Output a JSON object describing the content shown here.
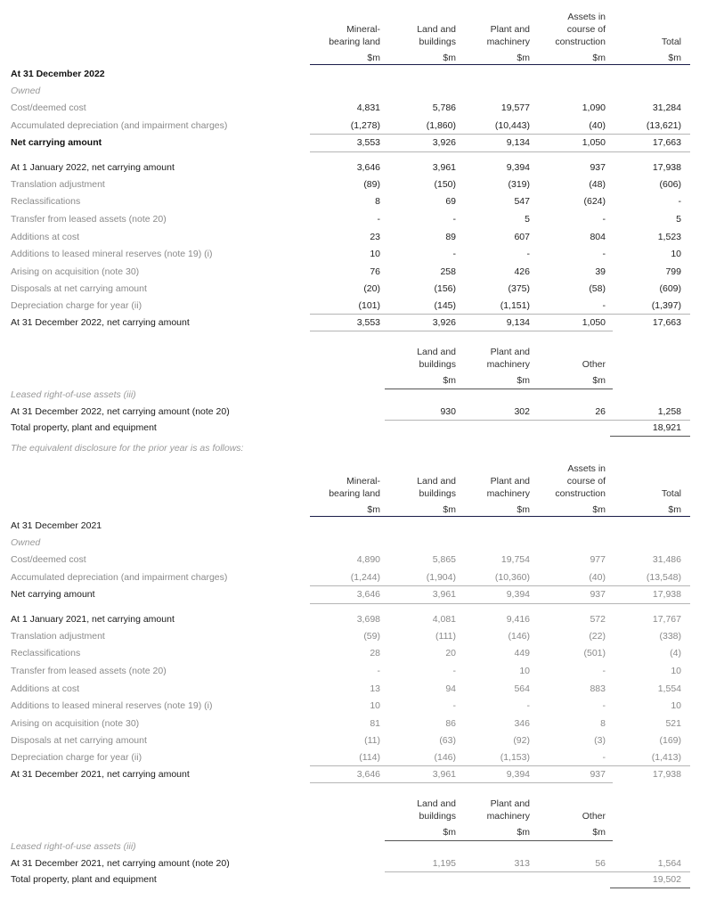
{
  "sections": [
    {
      "year": "2022",
      "numbers_muted": false,
      "header": {
        "columns": [
          [
            "Mineral-",
            "bearing land",
            "$m"
          ],
          [
            "Land and",
            "buildings",
            "$m"
          ],
          [
            "Plant and",
            "machinery",
            "$m"
          ],
          [
            "Assets in",
            "course of",
            "construction",
            "$m"
          ],
          [
            "Total",
            "$m"
          ]
        ]
      },
      "title": "At 31 December 2022",
      "title_bold": true,
      "owned_label": "Owned",
      "cost_rows": [
        {
          "label": "Cost/deemed cost",
          "values": [
            "4,831",
            "5,786",
            "19,577",
            "1,090",
            "31,284"
          ]
        },
        {
          "label": "Accumulated depreciation (and impairment charges)",
          "values": [
            "(1,278)",
            "(1,860)",
            "(10,443)",
            "(40)",
            "(13,621)"
          ]
        },
        {
          "label": "Net carrying amount",
          "values": [
            "3,553",
            "3,926",
            "9,134",
            "1,050",
            "17,663"
          ],
          "style": "bold"
        }
      ],
      "movement_rows": [
        {
          "label": "At 1 January 2022, net carrying amount",
          "values": [
            "3,646",
            "3,961",
            "9,394",
            "937",
            "17,938"
          ],
          "style": "em"
        },
        {
          "label": "Translation adjustment",
          "values": [
            "(89)",
            "(150)",
            "(319)",
            "(48)",
            "(606)"
          ]
        },
        {
          "label": "Reclassifications",
          "values": [
            "8",
            "69",
            "547",
            "(624)",
            "-"
          ]
        },
        {
          "label": "Transfer from leased assets (note 20)",
          "values": [
            "-",
            "-",
            "5",
            "-",
            "5"
          ]
        },
        {
          "label": "Additions at cost",
          "values": [
            "23",
            "89",
            "607",
            "804",
            "1,523"
          ]
        },
        {
          "label": "Additions to leased mineral reserves (note 19) (i)",
          "values": [
            "10",
            "-",
            "-",
            "-",
            "10"
          ]
        },
        {
          "label": "Arising on acquisition (note 30)",
          "values": [
            "76",
            "258",
            "426",
            "39",
            "799"
          ]
        },
        {
          "label": "Disposals at net carrying amount",
          "values": [
            "(20)",
            "(156)",
            "(375)",
            "(58)",
            "(609)"
          ]
        },
        {
          "label": "Depreciation charge for year (ii)",
          "values": [
            "(101)",
            "(145)",
            "(1,151)",
            "-",
            "(1,397)"
          ]
        },
        {
          "label": "At 31 December 2022, net carrying amount",
          "values": [
            "3,553",
            "3,926",
            "9,134",
            "1,050",
            "17,663"
          ],
          "style": "em"
        }
      ],
      "lease": {
        "columns": [
          [
            "Land and",
            "buildings",
            "$m"
          ],
          [
            "Plant and",
            "machinery",
            "$m"
          ],
          [
            "Other",
            "$m"
          ]
        ],
        "label": "Leased right-of-use assets (iii)",
        "row": {
          "label": "At 31 December 2022, net carrying amount (note 20)",
          "values": [
            "930",
            "302",
            "26",
            "1,258"
          ]
        },
        "total": {
          "label": "Total property, plant and equipment",
          "value": "18,921"
        }
      },
      "footnote": "The equivalent disclosure for the prior year is as follows:"
    },
    {
      "year": "2021",
      "numbers_muted": true,
      "header": {
        "columns": [
          [
            "Mineral-",
            "bearing land",
            "$m"
          ],
          [
            "Land and",
            "buildings",
            "$m"
          ],
          [
            "Plant and",
            "machinery",
            "$m"
          ],
          [
            "Assets in",
            "course of",
            "construction",
            "$m"
          ],
          [
            "Total",
            "$m"
          ]
        ]
      },
      "title": "At 31 December 2021",
      "title_bold": false,
      "owned_label": "Owned",
      "cost_rows": [
        {
          "label": "Cost/deemed cost",
          "values": [
            "4,890",
            "5,865",
            "19,754",
            "977",
            "31,486"
          ]
        },
        {
          "label": "Accumulated depreciation (and impairment charges)",
          "values": [
            "(1,244)",
            "(1,904)",
            "(10,360)",
            "(40)",
            "(13,548)"
          ]
        },
        {
          "label": "Net carrying amount",
          "values": [
            "3,646",
            "3,961",
            "9,394",
            "937",
            "17,938"
          ],
          "style": "em"
        }
      ],
      "movement_rows": [
        {
          "label": "At 1 January 2021, net carrying amount",
          "values": [
            "3,698",
            "4,081",
            "9,416",
            "572",
            "17,767"
          ],
          "style": "em"
        },
        {
          "label": "Translation adjustment",
          "values": [
            "(59)",
            "(111)",
            "(146)",
            "(22)",
            "(338)"
          ]
        },
        {
          "label": "Reclassifications",
          "values": [
            "28",
            "20",
            "449",
            "(501)",
            "(4)"
          ]
        },
        {
          "label": "Transfer from leased assets (note 20)",
          "values": [
            "-",
            "-",
            "10",
            "-",
            "10"
          ]
        },
        {
          "label": "Additions at cost",
          "values": [
            "13",
            "94",
            "564",
            "883",
            "1,554"
          ]
        },
        {
          "label": "Additions to leased mineral reserves (note 19) (i)",
          "values": [
            "10",
            "-",
            "-",
            "-",
            "10"
          ]
        },
        {
          "label": "Arising on acquisition (note 30)",
          "values": [
            "81",
            "86",
            "346",
            "8",
            "521"
          ]
        },
        {
          "label": "Disposals at net carrying amount",
          "values": [
            "(11)",
            "(63)",
            "(92)",
            "(3)",
            "(169)"
          ]
        },
        {
          "label": "Depreciation charge for year (ii)",
          "values": [
            "(114)",
            "(146)",
            "(1,153)",
            "-",
            "(1,413)"
          ]
        },
        {
          "label": "At 31 December 2021, net carrying amount",
          "values": [
            "3,646",
            "3,961",
            "9,394",
            "937",
            "17,938"
          ],
          "style": "em"
        }
      ],
      "lease": {
        "columns": [
          [
            "Land and",
            "buildings",
            "$m"
          ],
          [
            "Plant and",
            "machinery",
            "$m"
          ],
          [
            "Other",
            "$m"
          ]
        ],
        "label": "Leased right-of-use assets (iii)",
        "row": {
          "label": "At 31 December 2021, net carrying amount (note 20)",
          "values": [
            "1,195",
            "313",
            "56",
            "1,564"
          ]
        },
        "total": {
          "label": "Total property, plant and equipment",
          "value": "19,502"
        }
      }
    }
  ]
}
